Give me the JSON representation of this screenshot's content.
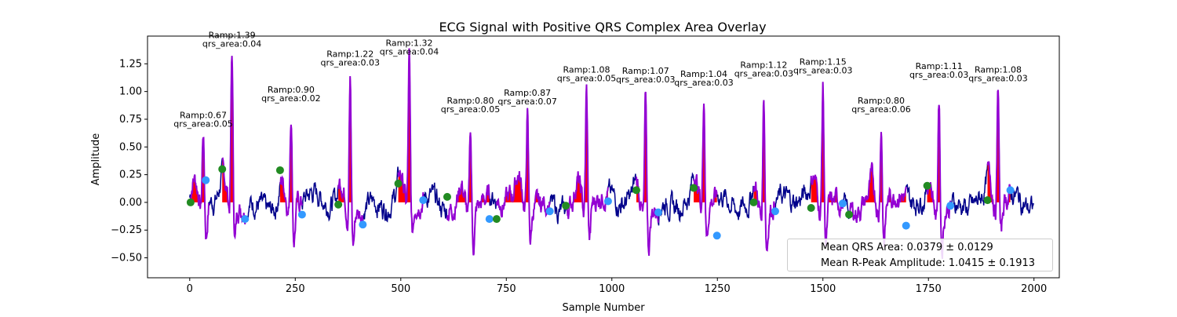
{
  "chart_data": {
    "type": "line",
    "title": "ECG Signal with Positive QRS Complex Area Overlay",
    "xlabel": "Sample Number",
    "ylabel": "Amplitude",
    "xlim": [
      -100,
      2060
    ],
    "ylim": [
      -0.68,
      1.5
    ],
    "x_ticks": [
      0,
      250,
      500,
      750,
      1000,
      1250,
      1500,
      1750,
      2000
    ],
    "y_ticks": [
      -0.5,
      -0.25,
      0.0,
      0.25,
      0.5,
      0.75,
      1.0,
      1.25
    ],
    "grid": false,
    "legend_position": "lower-right",
    "colors": {
      "signal": "#00008b",
      "qrs_segment": "#9400d3",
      "qrs_fill": "#ff0000",
      "onset_marker": "#228b22",
      "offset_marker": "#3399ff"
    },
    "beats": [
      {
        "r_index": 100,
        "r_amp": 1.39,
        "qrs_area": 0.04,
        "label_ramp": "Ramp:1.39",
        "label_area": "qrs_area:0.04",
        "q_onset": [
          77,
          0.3
        ],
        "s_offset": [
          131,
          -0.15
        ]
      },
      {
        "r_index": 240,
        "r_amp": 0.9,
        "qrs_area": 0.02,
        "label_ramp": "Ramp:0.90",
        "label_area": "qrs_area:0.02",
        "q_onset": [
          214,
          0.29
        ],
        "s_offset": [
          266,
          -0.11
        ]
      },
      {
        "r_index": 380,
        "r_amp": 1.22,
        "qrs_area": 0.03,
        "label_ramp": "Ramp:1.22",
        "label_area": "qrs_area:0.03",
        "q_onset": [
          352,
          -0.02
        ],
        "s_offset": [
          410,
          -0.2
        ]
      },
      {
        "r_index": 520,
        "r_amp": 1.32,
        "qrs_area": 0.04,
        "label_ramp": "Ramp:1.32",
        "label_area": "qrs_area:0.04",
        "q_onset": [
          494,
          0.17
        ],
        "s_offset": [
          553,
          0.02
        ]
      },
      {
        "r_index": 665,
        "r_amp": 0.8,
        "qrs_area": 0.05,
        "label_ramp": "Ramp:0.80",
        "label_area": "qrs_area:0.05",
        "q_onset": [
          610,
          0.05
        ],
        "s_offset": [
          710,
          -0.15
        ]
      },
      {
        "r_index": 800,
        "r_amp": 0.87,
        "qrs_area": 0.07,
        "label_ramp": "Ramp:0.87",
        "label_area": "qrs_area:0.07",
        "q_onset": [
          727,
          -0.15
        ],
        "s_offset": [
          853,
          -0.08
        ]
      },
      {
        "r_index": 940,
        "r_amp": 1.08,
        "qrs_area": 0.05,
        "label_ramp": "Ramp:1.08",
        "label_area": "qrs_area:0.05",
        "q_onset": [
          891,
          -0.03
        ],
        "s_offset": [
          991,
          0.01
        ]
      },
      {
        "r_index": 1080,
        "r_amp": 1.07,
        "qrs_area": 0.03,
        "label_ramp": "Ramp:1.07",
        "label_area": "qrs_area:0.03",
        "q_onset": [
          1058,
          0.11
        ],
        "s_offset": [
          1110,
          -0.09
        ]
      },
      {
        "r_index": 1218,
        "r_amp": 1.04,
        "qrs_area": 0.03,
        "label_ramp": "Ramp:1.04",
        "label_area": "qrs_area:0.03",
        "q_onset": [
          1194,
          0.13
        ],
        "s_offset": [
          1249,
          -0.3
        ]
      },
      {
        "r_index": 1360,
        "r_amp": 1.12,
        "qrs_area": 0.03,
        "label_ramp": "Ramp:1.12",
        "label_area": "qrs_area:0.03",
        "q_onset": [
          1336,
          0.0
        ],
        "s_offset": [
          1387,
          -0.08
        ]
      },
      {
        "r_index": 1500,
        "r_amp": 1.15,
        "qrs_area": 0.03,
        "label_ramp": "Ramp:1.15",
        "label_area": "qrs_area:0.03",
        "q_onset": [
          1472,
          -0.05
        ],
        "s_offset": [
          1547,
          -0.01
        ]
      },
      {
        "r_index": 1638,
        "r_amp": 0.8,
        "qrs_area": 0.06,
        "label_ramp": "Ramp:0.80",
        "label_area": "qrs_area:0.06",
        "q_onset": [
          1562,
          -0.11
        ],
        "s_offset": [
          1697,
          -0.21
        ]
      },
      {
        "r_index": 1775,
        "r_amp": 1.11,
        "qrs_area": 0.03,
        "label_ramp": "Ramp:1.11",
        "label_area": "qrs_area:0.03",
        "q_onset": [
          1747,
          0.15
        ],
        "s_offset": [
          1802,
          -0.03
        ]
      },
      {
        "r_index": 1915,
        "r_amp": 1.08,
        "qrs_area": 0.03,
        "label_ramp": "Ramp:1.08",
        "label_area": "qrs_area:0.03",
        "q_onset": [
          1890,
          0.02
        ],
        "s_offset": [
          1944,
          0.11
        ]
      }
    ],
    "extra_markers": [
      {
        "type": "onset",
        "x": 2,
        "y": 0.0
      },
      {
        "type": "offset",
        "x": 38,
        "y": 0.2
      }
    ],
    "first_partial_beat": {
      "r_index": 32,
      "r_amp": 0.67,
      "label_ramp": "Ramp:0.67",
      "label_area": "qrs_area:0.05"
    },
    "legend": {
      "mean_area": "Mean QRS Area: 0.0379 ± 0.0129",
      "mean_ramp": "Mean R-Peak Amplitude: 1.0415 ± 0.1913"
    }
  }
}
